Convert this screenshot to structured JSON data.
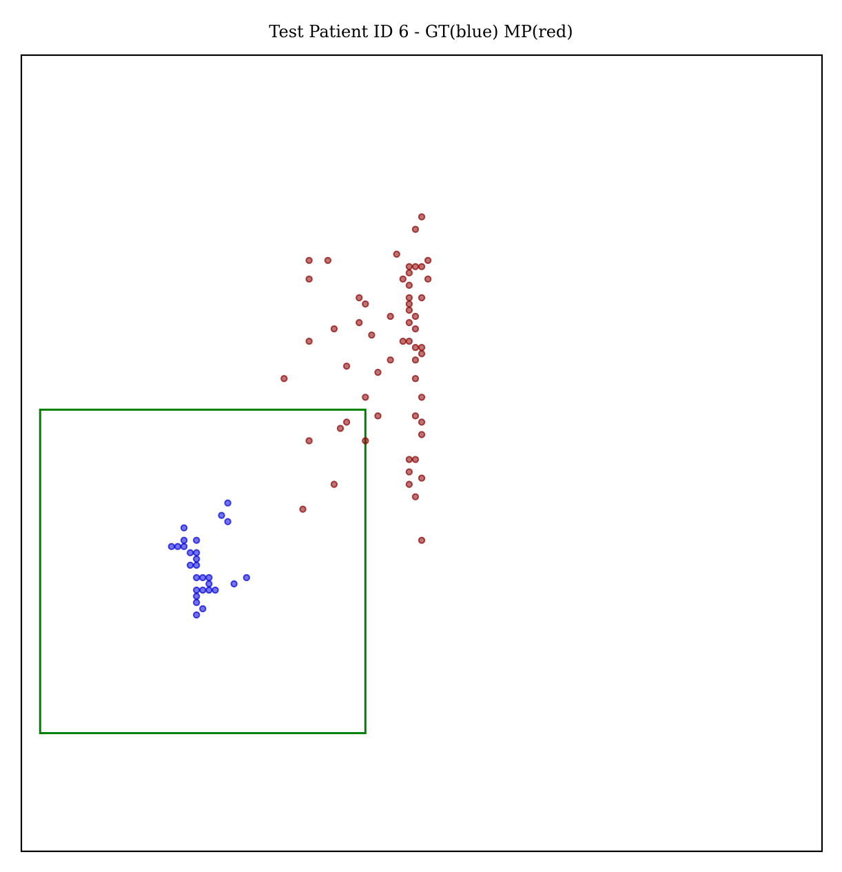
{
  "chart_data": {
    "type": "scatter",
    "title": "Test Patient ID 6 - GT(blue) MP(red)",
    "xlabel": "",
    "ylabel": "",
    "xlim": [
      0,
      128
    ],
    "ylim": [
      128,
      0
    ],
    "axis_ticks": false,
    "grid": false,
    "legend": "none",
    "series": [
      {
        "color": "#0000dd",
        "points": [
          [
            33,
            72
          ],
          [
            32,
            74
          ],
          [
            33,
            75
          ],
          [
            26,
            76
          ],
          [
            28,
            78
          ],
          [
            26,
            78
          ],
          [
            25,
            79
          ],
          [
            24,
            79
          ],
          [
            26,
            79
          ],
          [
            27,
            80
          ],
          [
            28,
            80
          ],
          [
            28,
            81
          ],
          [
            27,
            82
          ],
          [
            28,
            82
          ],
          [
            28,
            84
          ],
          [
            29,
            84
          ],
          [
            30,
            84
          ],
          [
            36,
            84
          ],
          [
            30,
            85
          ],
          [
            34,
            85
          ],
          [
            28,
            86
          ],
          [
            29,
            86
          ],
          [
            30,
            86
          ],
          [
            31,
            86
          ],
          [
            28,
            87
          ],
          [
            28,
            88
          ],
          [
            29,
            89
          ],
          [
            28,
            90
          ]
        ]
      },
      {
        "color": "#8b0000",
        "points": [
          [
            64,
            26
          ],
          [
            63,
            28
          ],
          [
            46,
            33
          ],
          [
            49,
            33
          ],
          [
            60,
            32
          ],
          [
            65,
            33
          ],
          [
            63,
            34
          ],
          [
            64,
            34
          ],
          [
            62,
            34
          ],
          [
            62,
            35
          ],
          [
            46,
            36
          ],
          [
            61,
            36
          ],
          [
            65,
            36
          ],
          [
            62,
            37
          ],
          [
            54,
            39
          ],
          [
            55,
            40
          ],
          [
            62,
            39
          ],
          [
            64,
            39
          ],
          [
            62,
            40
          ],
          [
            62,
            41
          ],
          [
            59,
            42
          ],
          [
            63,
            42
          ],
          [
            54,
            43
          ],
          [
            62,
            43
          ],
          [
            50,
            44
          ],
          [
            63,
            44
          ],
          [
            56,
            45
          ],
          [
            46,
            46
          ],
          [
            61,
            46
          ],
          [
            62,
            46
          ],
          [
            63,
            47
          ],
          [
            64,
            47
          ],
          [
            64,
            48
          ],
          [
            59,
            49
          ],
          [
            63,
            49
          ],
          [
            52,
            50
          ],
          [
            57,
            51
          ],
          [
            42,
            52
          ],
          [
            63,
            52
          ],
          [
            55,
            55
          ],
          [
            64,
            55
          ],
          [
            57,
            58
          ],
          [
            63,
            58
          ],
          [
            64,
            59
          ],
          [
            52,
            59
          ],
          [
            51,
            60
          ],
          [
            46,
            62
          ],
          [
            55,
            62
          ],
          [
            64,
            61
          ],
          [
            62,
            65
          ],
          [
            63,
            65
          ],
          [
            62,
            67
          ],
          [
            64,
            68
          ],
          [
            50,
            69
          ],
          [
            62,
            69
          ],
          [
            63,
            71
          ],
          [
            45,
            73
          ],
          [
            64,
            78
          ]
        ]
      }
    ],
    "annotations": [
      {
        "type": "rectangle",
        "color": "#008000",
        "x0": 3,
        "y0": 57,
        "x1": 55,
        "y1": 109
      }
    ]
  }
}
